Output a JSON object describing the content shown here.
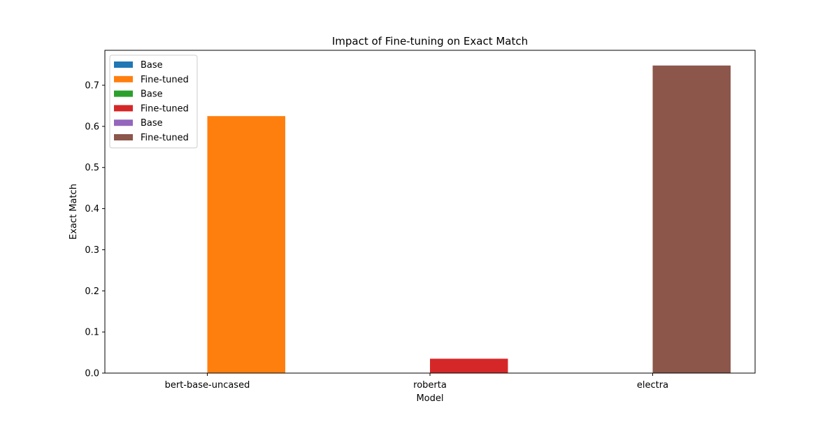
{
  "chart_data": {
    "type": "bar",
    "title": "Impact of Fine-tuning on Exact Match",
    "xlabel": "Model",
    "ylabel": "Exact Match",
    "categories": [
      "bert-base-uncased",
      "roberta",
      "electra"
    ],
    "ylim": [
      0,
      0.785
    ],
    "yticks": [
      0.0,
      0.1,
      0.2,
      0.3,
      0.4,
      0.5,
      0.6,
      0.7
    ],
    "grid": false,
    "legend_position": "top-left",
    "series": [
      {
        "name": "Base",
        "category": "bert-base-uncased",
        "value": 0.0,
        "color": "#1f77b4",
        "slot": 0
      },
      {
        "name": "Fine-tuned",
        "category": "bert-base-uncased",
        "value": 0.625,
        "color": "#ff7f0e",
        "slot": 1
      },
      {
        "name": "Base",
        "category": "roberta",
        "value": 0.0,
        "color": "#2ca02c",
        "slot": 0
      },
      {
        "name": "Fine-tuned",
        "category": "roberta",
        "value": 0.035,
        "color": "#d62728",
        "slot": 1
      },
      {
        "name": "Base",
        "category": "electra",
        "value": 0.0,
        "color": "#9467bd",
        "slot": 0
      },
      {
        "name": "Fine-tuned",
        "category": "electra",
        "value": 0.748,
        "color": "#8c564b",
        "slot": 1
      }
    ]
  }
}
